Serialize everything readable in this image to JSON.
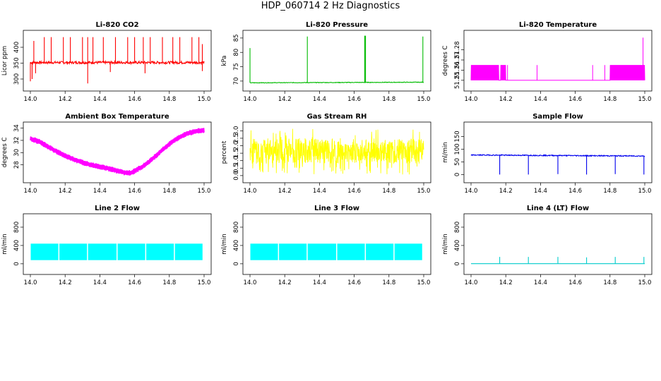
{
  "page": {
    "title": "HDP_060714  2 Hz Diagnostics"
  },
  "chart_data": [
    {
      "type": "line",
      "title": "Li-820 CO2",
      "xlabel": "",
      "ylabel": "Licor ppm",
      "color": "#ff0000",
      "xlim": [
        14.0,
        15.0
      ],
      "ylim": [
        280,
        440
      ],
      "xticks": [
        14.0,
        14.2,
        14.4,
        14.6,
        14.8,
        15.0
      ],
      "xtick_labels": [
        "14.0",
        "14.2",
        "14.4",
        "14.6",
        "14.8",
        "15.0"
      ],
      "yticks": [
        300,
        350,
        400
      ],
      "ytick_labels": [
        "300",
        "350",
        "400"
      ],
      "series": [
        {
          "style": "noisy-baseline",
          "baseline": [
            [
              14.0,
              352
            ],
            [
              1.0,
              352
            ]
          ],
          "x": [
            14.0,
            15.0
          ],
          "y": [
            352,
            352
          ],
          "noise": 4,
          "spikes": [
            [
              14.02,
              420
            ],
            [
              14.08,
              432
            ],
            [
              14.12,
              432
            ],
            [
              14.19,
              432
            ],
            [
              14.23,
              432
            ],
            [
              14.3,
              432
            ],
            [
              14.33,
              432
            ],
            [
              14.36,
              432
            ],
            [
              14.42,
              432
            ],
            [
              14.49,
              432
            ],
            [
              14.56,
              432
            ],
            [
              14.6,
              432
            ],
            [
              14.65,
              432
            ],
            [
              14.69,
              432
            ],
            [
              14.76,
              432
            ],
            [
              14.82,
              432
            ],
            [
              14.86,
              432
            ],
            [
              14.93,
              432
            ],
            [
              14.97,
              432
            ],
            [
              14.99,
              410
            ]
          ],
          "dips": [
            [
              14.0,
              293
            ],
            [
              14.01,
              300
            ],
            [
              14.03,
              318
            ],
            [
              14.33,
              286
            ],
            [
              14.46,
              322
            ],
            [
              14.66,
              318
            ],
            [
              14.99,
              325
            ]
          ]
        }
      ]
    },
    {
      "type": "line",
      "title": "Li-820 Pressure",
      "xlabel": "",
      "ylabel": "kPa",
      "color": "#00bb00",
      "xlim": [
        14.0,
        15.0
      ],
      "ylim": [
        68.5,
        86.2
      ],
      "xticks": [
        14.0,
        14.2,
        14.4,
        14.6,
        14.8,
        15.0
      ],
      "xtick_labels": [
        "14.0",
        "14.2",
        "14.4",
        "14.6",
        "14.8",
        "15.0"
      ],
      "yticks": [
        70,
        75,
        80,
        85
      ],
      "ytick_labels": [
        "70",
        "75",
        "80",
        "85"
      ],
      "series": [
        {
          "style": "flat-spikes",
          "x": [
            14.0,
            15.0
          ],
          "y": [
            69.4,
            69.6
          ],
          "noise": 0.1,
          "spikes": [
            [
              14.0,
              81.5
            ],
            [
              14.33,
              85.5
            ],
            [
              14.66,
              85.8
            ],
            [
              14.665,
              85.8
            ],
            [
              14.995,
              85.5
            ]
          ]
        }
      ]
    },
    {
      "type": "line",
      "title": "Li-820 Temperature",
      "xlabel": "",
      "ylabel": "degrees C",
      "color": "#ff00ff",
      "xlim": [
        14.0,
        15.0
      ],
      "ylim": [
        51.245,
        51.295
      ],
      "xticks": [
        14.0,
        14.2,
        14.4,
        14.6,
        14.8,
        15.0
      ],
      "xtick_labels": [
        "14.0",
        "14.2",
        "14.4",
        "14.6",
        "14.8",
        "15.0"
      ],
      "yticks": [
        51.25,
        51.26,
        51.27,
        51.28
      ],
      "ytick_labels": [
        "51.25",
        "51.26",
        "51.27",
        "51.28"
      ],
      "series": [
        {
          "style": "two-level",
          "levels": [
            51.25,
            51.265
          ],
          "high_ranges": [
            [
              14.0,
              14.16
            ],
            [
              14.17,
              14.2
            ],
            [
              14.8,
              15.0
            ]
          ],
          "spikes": [
            [
              14.21,
              51.265
            ],
            [
              14.38,
              51.265
            ],
            [
              14.7,
              51.265
            ],
            [
              14.77,
              51.265
            ],
            [
              14.99,
              51.292
            ]
          ]
        }
      ]
    },
    {
      "type": "line",
      "title": "Ambient Box Temperature",
      "xlabel": "",
      "ylabel": "degrees C",
      "color": "#ff00ff",
      "xlim": [
        14.0,
        15.0
      ],
      "ylim": [
        26.0,
        34.3
      ],
      "xticks": [
        14.0,
        14.2,
        14.4,
        14.6,
        14.8,
        15.0
      ],
      "xtick_labels": [
        "14.0",
        "14.2",
        "14.4",
        "14.6",
        "14.8",
        "15.0"
      ],
      "yticks": [
        28,
        30,
        32,
        34
      ],
      "ytick_labels": [
        "28",
        "30",
        "32",
        "34"
      ],
      "series": [
        {
          "style": "band",
          "x": [
            14.0,
            14.05,
            14.1,
            14.15,
            14.2,
            14.25,
            14.3,
            14.35,
            14.4,
            14.45,
            14.5,
            14.55,
            14.58,
            14.6,
            14.65,
            14.7,
            14.75,
            14.8,
            14.85,
            14.9,
            14.95,
            15.0
          ],
          "y": [
            32.3,
            31.8,
            31.0,
            30.2,
            29.5,
            28.9,
            28.4,
            28.0,
            27.7,
            27.4,
            27.0,
            26.7,
            26.7,
            27.0,
            27.8,
            28.9,
            30.2,
            31.4,
            32.4,
            33.1,
            33.5,
            33.6
          ],
          "band_width": 0.9
        }
      ]
    },
    {
      "type": "line",
      "title": "Gas Stream RH",
      "xlabel": "",
      "ylabel": "percent",
      "color": "#ffff00",
      "xlim": [
        14.0,
        15.0
      ],
      "ylim": [
        -0.1,
        3.3
      ],
      "xticks": [
        14.0,
        14.2,
        14.4,
        14.6,
        14.8,
        15.0
      ],
      "xtick_labels": [
        "14.0",
        "14.2",
        "14.4",
        "14.6",
        "14.8",
        "15.0"
      ],
      "yticks": [
        0.0,
        0.5,
        1.0,
        1.5,
        2.0,
        2.5,
        3.0
      ],
      "ytick_labels": [
        "0.0",
        "0.5",
        "1.0",
        "1.5",
        "2.0",
        "2.5",
        "3.0"
      ],
      "series": [
        {
          "style": "noise-band",
          "x": [
            14.0,
            15.0
          ],
          "y": [
            1.6,
            1.6
          ],
          "low": 0.8,
          "high": 2.5,
          "min": 0.05,
          "max": 3.15
        }
      ]
    },
    {
      "type": "line",
      "title": "Sample Flow",
      "xlabel": "",
      "ylabel": "ml/min",
      "color": "#0000ee",
      "xlim": [
        14.0,
        15.0
      ],
      "ylim": [
        -10,
        190
      ],
      "xticks": [
        14.0,
        14.2,
        14.4,
        14.6,
        14.8,
        15.0
      ],
      "xtick_labels": [
        "14.0",
        "14.2",
        "14.4",
        "14.6",
        "14.8",
        "15.0"
      ],
      "yticks": [
        0,
        50,
        100,
        150
      ],
      "ytick_labels": [
        "0",
        "50",
        "100",
        "150"
      ],
      "series": [
        {
          "style": "flat-dips",
          "x": [
            14.0,
            15.0
          ],
          "y": [
            77,
            73
          ],
          "noise": 2,
          "dips": [
            [
              14.165,
              0
            ],
            [
              14.33,
              0
            ],
            [
              14.5,
              2
            ],
            [
              14.665,
              0
            ],
            [
              14.83,
              2
            ],
            [
              14.995,
              0
            ]
          ]
        }
      ]
    },
    {
      "type": "area",
      "title": "Line 2 Flow",
      "xlabel": "",
      "ylabel": "ml/min",
      "color": "#00ffff",
      "xlim": [
        14.0,
        15.0
      ],
      "ylim": [
        -110,
        1000
      ],
      "xticks": [
        14.0,
        14.2,
        14.4,
        14.6,
        14.8,
        15.0
      ],
      "xtick_labels": [
        "14.0",
        "14.2",
        "14.4",
        "14.6",
        "14.8",
        "15.0"
      ],
      "yticks": [
        0,
        400,
        800
      ],
      "ytick_labels": [
        "0",
        "400",
        "800"
      ],
      "series": [
        {
          "style": "filled-blocks",
          "low": 80,
          "high": 440,
          "gaps": [
            14.165,
            14.33,
            14.5,
            14.665,
            14.83,
            14.995
          ]
        }
      ]
    },
    {
      "type": "area",
      "title": "Line 3 Flow",
      "xlabel": "",
      "ylabel": "ml/min",
      "color": "#00ffff",
      "xlim": [
        14.0,
        15.0
      ],
      "ylim": [
        -110,
        1000
      ],
      "xticks": [
        14.0,
        14.2,
        14.4,
        14.6,
        14.8,
        15.0
      ],
      "xtick_labels": [
        "14.0",
        "14.2",
        "14.4",
        "14.6",
        "14.8",
        "15.0"
      ],
      "yticks": [
        0,
        400,
        800
      ],
      "ytick_labels": [
        "0",
        "400",
        "800"
      ],
      "series": [
        {
          "style": "filled-blocks",
          "low": 80,
          "high": 440,
          "gaps": [
            14.165,
            14.33,
            14.5,
            14.665,
            14.83,
            14.995
          ]
        }
      ]
    },
    {
      "type": "line",
      "title": "Line 4 (LT) Flow",
      "xlabel": "",
      "ylabel": "ml/min",
      "color": "#00cccc",
      "xlim": [
        14.0,
        15.0
      ],
      "ylim": [
        -110,
        1000
      ],
      "xticks": [
        14.0,
        14.2,
        14.4,
        14.6,
        14.8,
        15.0
      ],
      "xtick_labels": [
        "14.0",
        "14.2",
        "14.4",
        "14.6",
        "14.8",
        "15.0"
      ],
      "yticks": [
        0,
        400,
        800
      ],
      "ytick_labels": [
        "0",
        "400",
        "800"
      ],
      "series": [
        {
          "style": "flat-spikes",
          "x": [
            14.0,
            15.0
          ],
          "y": [
            3,
            3
          ],
          "noise": 0,
          "spikes": [
            [
              14.165,
              150
            ],
            [
              14.33,
              150
            ],
            [
              14.5,
              150
            ],
            [
              14.665,
              140
            ],
            [
              14.83,
              150
            ],
            [
              14.995,
              150
            ]
          ]
        }
      ]
    }
  ]
}
